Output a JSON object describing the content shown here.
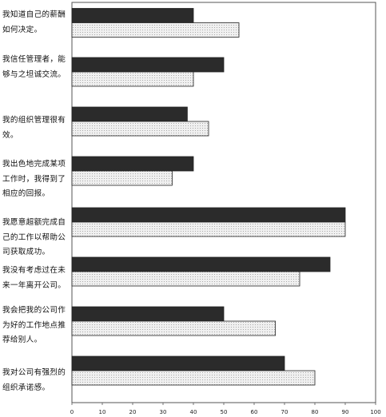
{
  "chart_data": {
    "type": "bar",
    "orientation": "horizontal",
    "categories": [
      "我知道自己的薪酬如何决定。",
      "我信任管理者，能够与之坦诚交流。",
      "我的组织管理很有效。",
      "我出色地完成某项工作时，我得到了相应的回报。",
      "我愿意超额完成自己的工作以帮助公司获取成功。",
      "我没有考虑过在未来一年离开公司。",
      "我会把我的公司作为好的工作地点推荐给别人。",
      "我对公司有强烈的组织承诺感。"
    ],
    "series": [
      {
        "values": [
          40,
          50,
          38,
          40,
          90,
          85,
          50,
          70
        ],
        "color": "#2b2b2b"
      },
      {
        "values": [
          55,
          40,
          45,
          33,
          90,
          75,
          67,
          80
        ],
        "color": "#e6e6e6"
      }
    ],
    "xlim": [
      0,
      100
    ],
    "xticks": [
      0,
      10,
      20,
      30,
      40,
      50,
      60,
      70,
      80,
      90,
      100
    ],
    "xlabel": "",
    "ylabel": "",
    "title": "",
    "grid": false,
    "legend": "none"
  }
}
